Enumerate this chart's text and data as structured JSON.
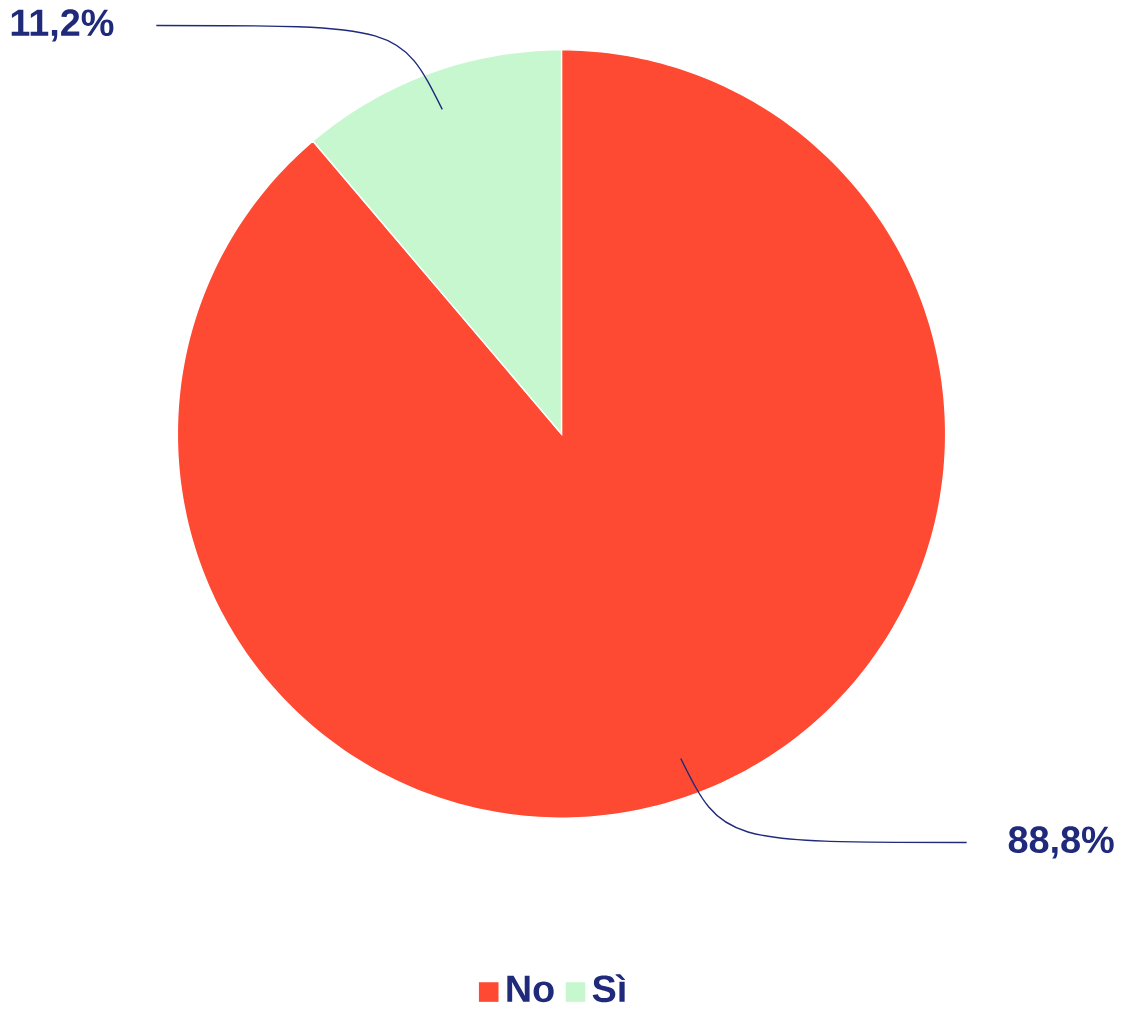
{
  "chart_data": {
    "type": "pie",
    "categories": [
      "No",
      "Sì"
    ],
    "values": [
      88.8,
      11.2
    ],
    "colors": [
      "#ff4a33",
      "#c6f7cf"
    ],
    "value_labels": [
      "88,8%",
      "11,2%"
    ],
    "legend": "bottom"
  }
}
